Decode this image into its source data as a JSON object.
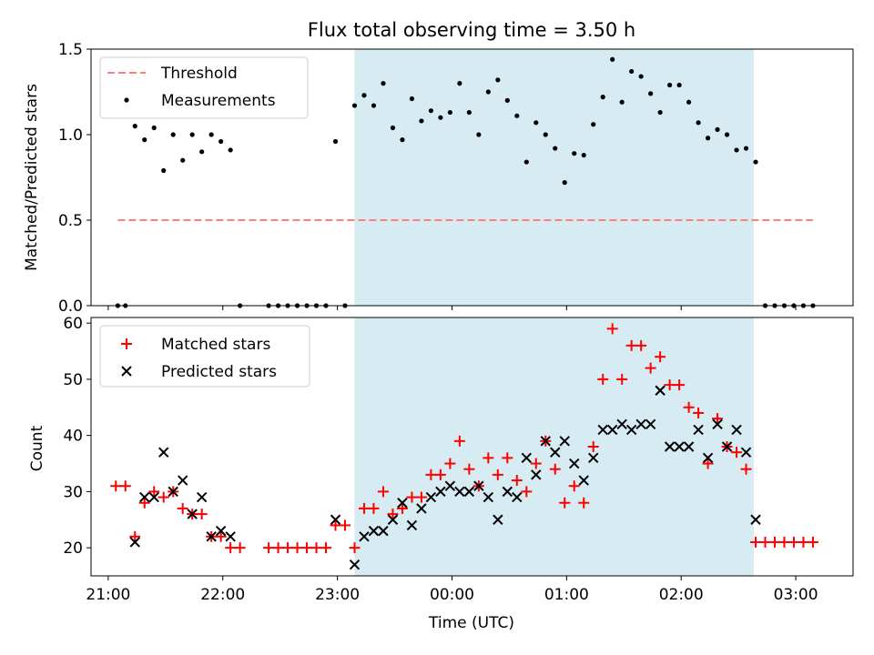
{
  "title": "Flux total observing time = 3.50 h",
  "xlabel": "Time (UTC)",
  "colors": {
    "threshold": "#ff7f7f",
    "measurements": "#000000",
    "matched": "#ff0000",
    "predicted": "#000000",
    "shade": "#add8e6"
  },
  "chart_data": [
    {
      "type": "scatter",
      "ylabel": "Matched/Predicted stars",
      "ylim": [
        0.0,
        1.5
      ],
      "yticks": [
        "0.0",
        "0.5",
        "1.0",
        "1.5"
      ],
      "xlim_hours": [
        20.85,
        27.5
      ],
      "xticks": [
        "21:00",
        "22:00",
        "23:00",
        "00:00",
        "01:00",
        "02:00",
        "03:00"
      ],
      "shaded_region": [
        "23:09",
        "02:38"
      ],
      "legend": {
        "position": "upper-left",
        "entries": [
          "Threshold",
          "Measurements"
        ]
      },
      "threshold": {
        "name": "Threshold",
        "value": 0.5,
        "x": [
          "21:05",
          "03:09"
        ]
      },
      "series": [
        {
          "name": "Measurements",
          "x": [
            "21:05",
            "21:09",
            "21:14",
            "21:19",
            "21:24",
            "21:29",
            "21:34",
            "21:39",
            "21:44",
            "21:49",
            "21:54",
            "21:59",
            "22:04",
            "22:09",
            "22:24",
            "22:29",
            "22:34",
            "22:39",
            "22:44",
            "22:49",
            "22:54",
            "22:59",
            "23:04",
            "23:09",
            "23:14",
            "23:19",
            "23:24",
            "23:29",
            "23:34",
            "23:39",
            "23:44",
            "23:49",
            "23:54",
            "23:59",
            "00:04",
            "00:09",
            "00:14",
            "00:19",
            "00:24",
            "00:29",
            "00:34",
            "00:39",
            "00:44",
            "00:49",
            "00:54",
            "00:59",
            "01:04",
            "01:09",
            "01:14",
            "01:19",
            "01:24",
            "01:29",
            "01:34",
            "01:39",
            "01:44",
            "01:49",
            "01:54",
            "01:59",
            "02:04",
            "02:09",
            "02:14",
            "02:19",
            "02:24",
            "02:29",
            "02:34",
            "02:39",
            "02:44",
            "02:49",
            "02:54",
            "02:59",
            "03:04",
            "03:09"
          ],
          "y": [
            0.0,
            0.0,
            1.05,
            0.97,
            1.04,
            0.79,
            1.0,
            0.85,
            1.0,
            0.9,
            1.0,
            0.96,
            0.91,
            0.0,
            0.0,
            0.0,
            0.0,
            0.0,
            0.0,
            0.0,
            0.0,
            0.96,
            0.0,
            1.17,
            1.23,
            1.17,
            1.3,
            1.04,
            0.97,
            1.21,
            1.08,
            1.14,
            1.1,
            1.13,
            1.3,
            1.13,
            1.0,
            1.25,
            1.32,
            1.2,
            1.11,
            0.84,
            1.07,
            1.0,
            0.92,
            0.72,
            0.89,
            0.88,
            1.06,
            1.22,
            1.44,
            1.19,
            1.37,
            1.34,
            1.24,
            1.13,
            1.29,
            1.29,
            1.19,
            1.07,
            0.98,
            1.03,
            1.0,
            0.91,
            0.92,
            0.84,
            0.0,
            0.0,
            0.0,
            0.0,
            0.0,
            0.0
          ]
        }
      ]
    },
    {
      "type": "scatter",
      "ylabel": "Count",
      "ylim": [
        15,
        61
      ],
      "yticks": [
        "20",
        "30",
        "40",
        "50",
        "60"
      ],
      "xlim_hours": [
        20.85,
        27.5
      ],
      "xticks": [
        "21:00",
        "22:00",
        "23:00",
        "00:00",
        "01:00",
        "02:00",
        "03:00"
      ],
      "shaded_region": [
        "23:09",
        "02:38"
      ],
      "legend": {
        "position": "upper-left",
        "entries": [
          "Matched stars",
          "Predicted stars"
        ]
      },
      "series": [
        {
          "name": "Matched stars",
          "marker": "+",
          "x": [
            "21:04",
            "21:09",
            "21:14",
            "21:19",
            "21:24",
            "21:29",
            "21:34",
            "21:39",
            "21:44",
            "21:49",
            "21:54",
            "21:59",
            "22:04",
            "22:09",
            "22:24",
            "22:29",
            "22:34",
            "22:39",
            "22:44",
            "22:49",
            "22:54",
            "22:59",
            "23:04",
            "23:09",
            "23:14",
            "23:19",
            "23:24",
            "23:29",
            "23:34",
            "23:39",
            "23:44",
            "23:49",
            "23:54",
            "23:59",
            "00:04",
            "00:09",
            "00:14",
            "00:19",
            "00:24",
            "00:29",
            "00:34",
            "00:39",
            "00:44",
            "00:49",
            "00:54",
            "00:59",
            "01:04",
            "01:09",
            "01:14",
            "01:19",
            "01:24",
            "01:29",
            "01:34",
            "01:39",
            "01:44",
            "01:49",
            "01:54",
            "01:59",
            "02:04",
            "02:09",
            "02:14",
            "02:19",
            "02:24",
            "02:29",
            "02:34",
            "02:39",
            "02:44",
            "02:49",
            "02:54",
            "02:59",
            "03:04",
            "03:09"
          ],
          "y": [
            31,
            31,
            22,
            28,
            30,
            29,
            30,
            27,
            26,
            26,
            22,
            22,
            20,
            20,
            20,
            20,
            20,
            20,
            20,
            20,
            20,
            24,
            24,
            20,
            27,
            27,
            30,
            26,
            27,
            29,
            29,
            33,
            33,
            35,
            39,
            34,
            31,
            36,
            33,
            36,
            32,
            30,
            35,
            39,
            34,
            28,
            31,
            28,
            38,
            50,
            59,
            50,
            56,
            56,
            52,
            54,
            49,
            49,
            45,
            44,
            35,
            43,
            38,
            37,
            34,
            21,
            21,
            21,
            21,
            21,
            21,
            21
          ]
        },
        {
          "name": "Predicted stars",
          "marker": "x",
          "x": [
            "21:14",
            "21:19",
            "21:24",
            "21:29",
            "21:34",
            "21:39",
            "21:44",
            "21:49",
            "21:54",
            "21:59",
            "22:04",
            "22:59",
            "23:09",
            "23:14",
            "23:19",
            "23:24",
            "23:29",
            "23:34",
            "23:39",
            "23:44",
            "23:49",
            "23:54",
            "23:59",
            "00:04",
            "00:09",
            "00:14",
            "00:19",
            "00:24",
            "00:29",
            "00:34",
            "00:39",
            "00:44",
            "00:49",
            "00:54",
            "00:59",
            "01:04",
            "01:09",
            "01:14",
            "01:19",
            "01:24",
            "01:29",
            "01:34",
            "01:39",
            "01:44",
            "01:49",
            "01:54",
            "01:59",
            "02:04",
            "02:09",
            "02:14",
            "02:19",
            "02:24",
            "02:29",
            "02:34",
            "02:39"
          ],
          "y": [
            21,
            29,
            29,
            37,
            30,
            32,
            26,
            29,
            22,
            23,
            22,
            25,
            17,
            22,
            23,
            23,
            25,
            28,
            24,
            27,
            29,
            30,
            31,
            30,
            30,
            31,
            29,
            25,
            30,
            29,
            36,
            33,
            39,
            37,
            39,
            35,
            32,
            36,
            41,
            41,
            42,
            41,
            42,
            42,
            48,
            38,
            38,
            38,
            41,
            36,
            42,
            38,
            41,
            37,
            25
          ]
        }
      ]
    }
  ]
}
